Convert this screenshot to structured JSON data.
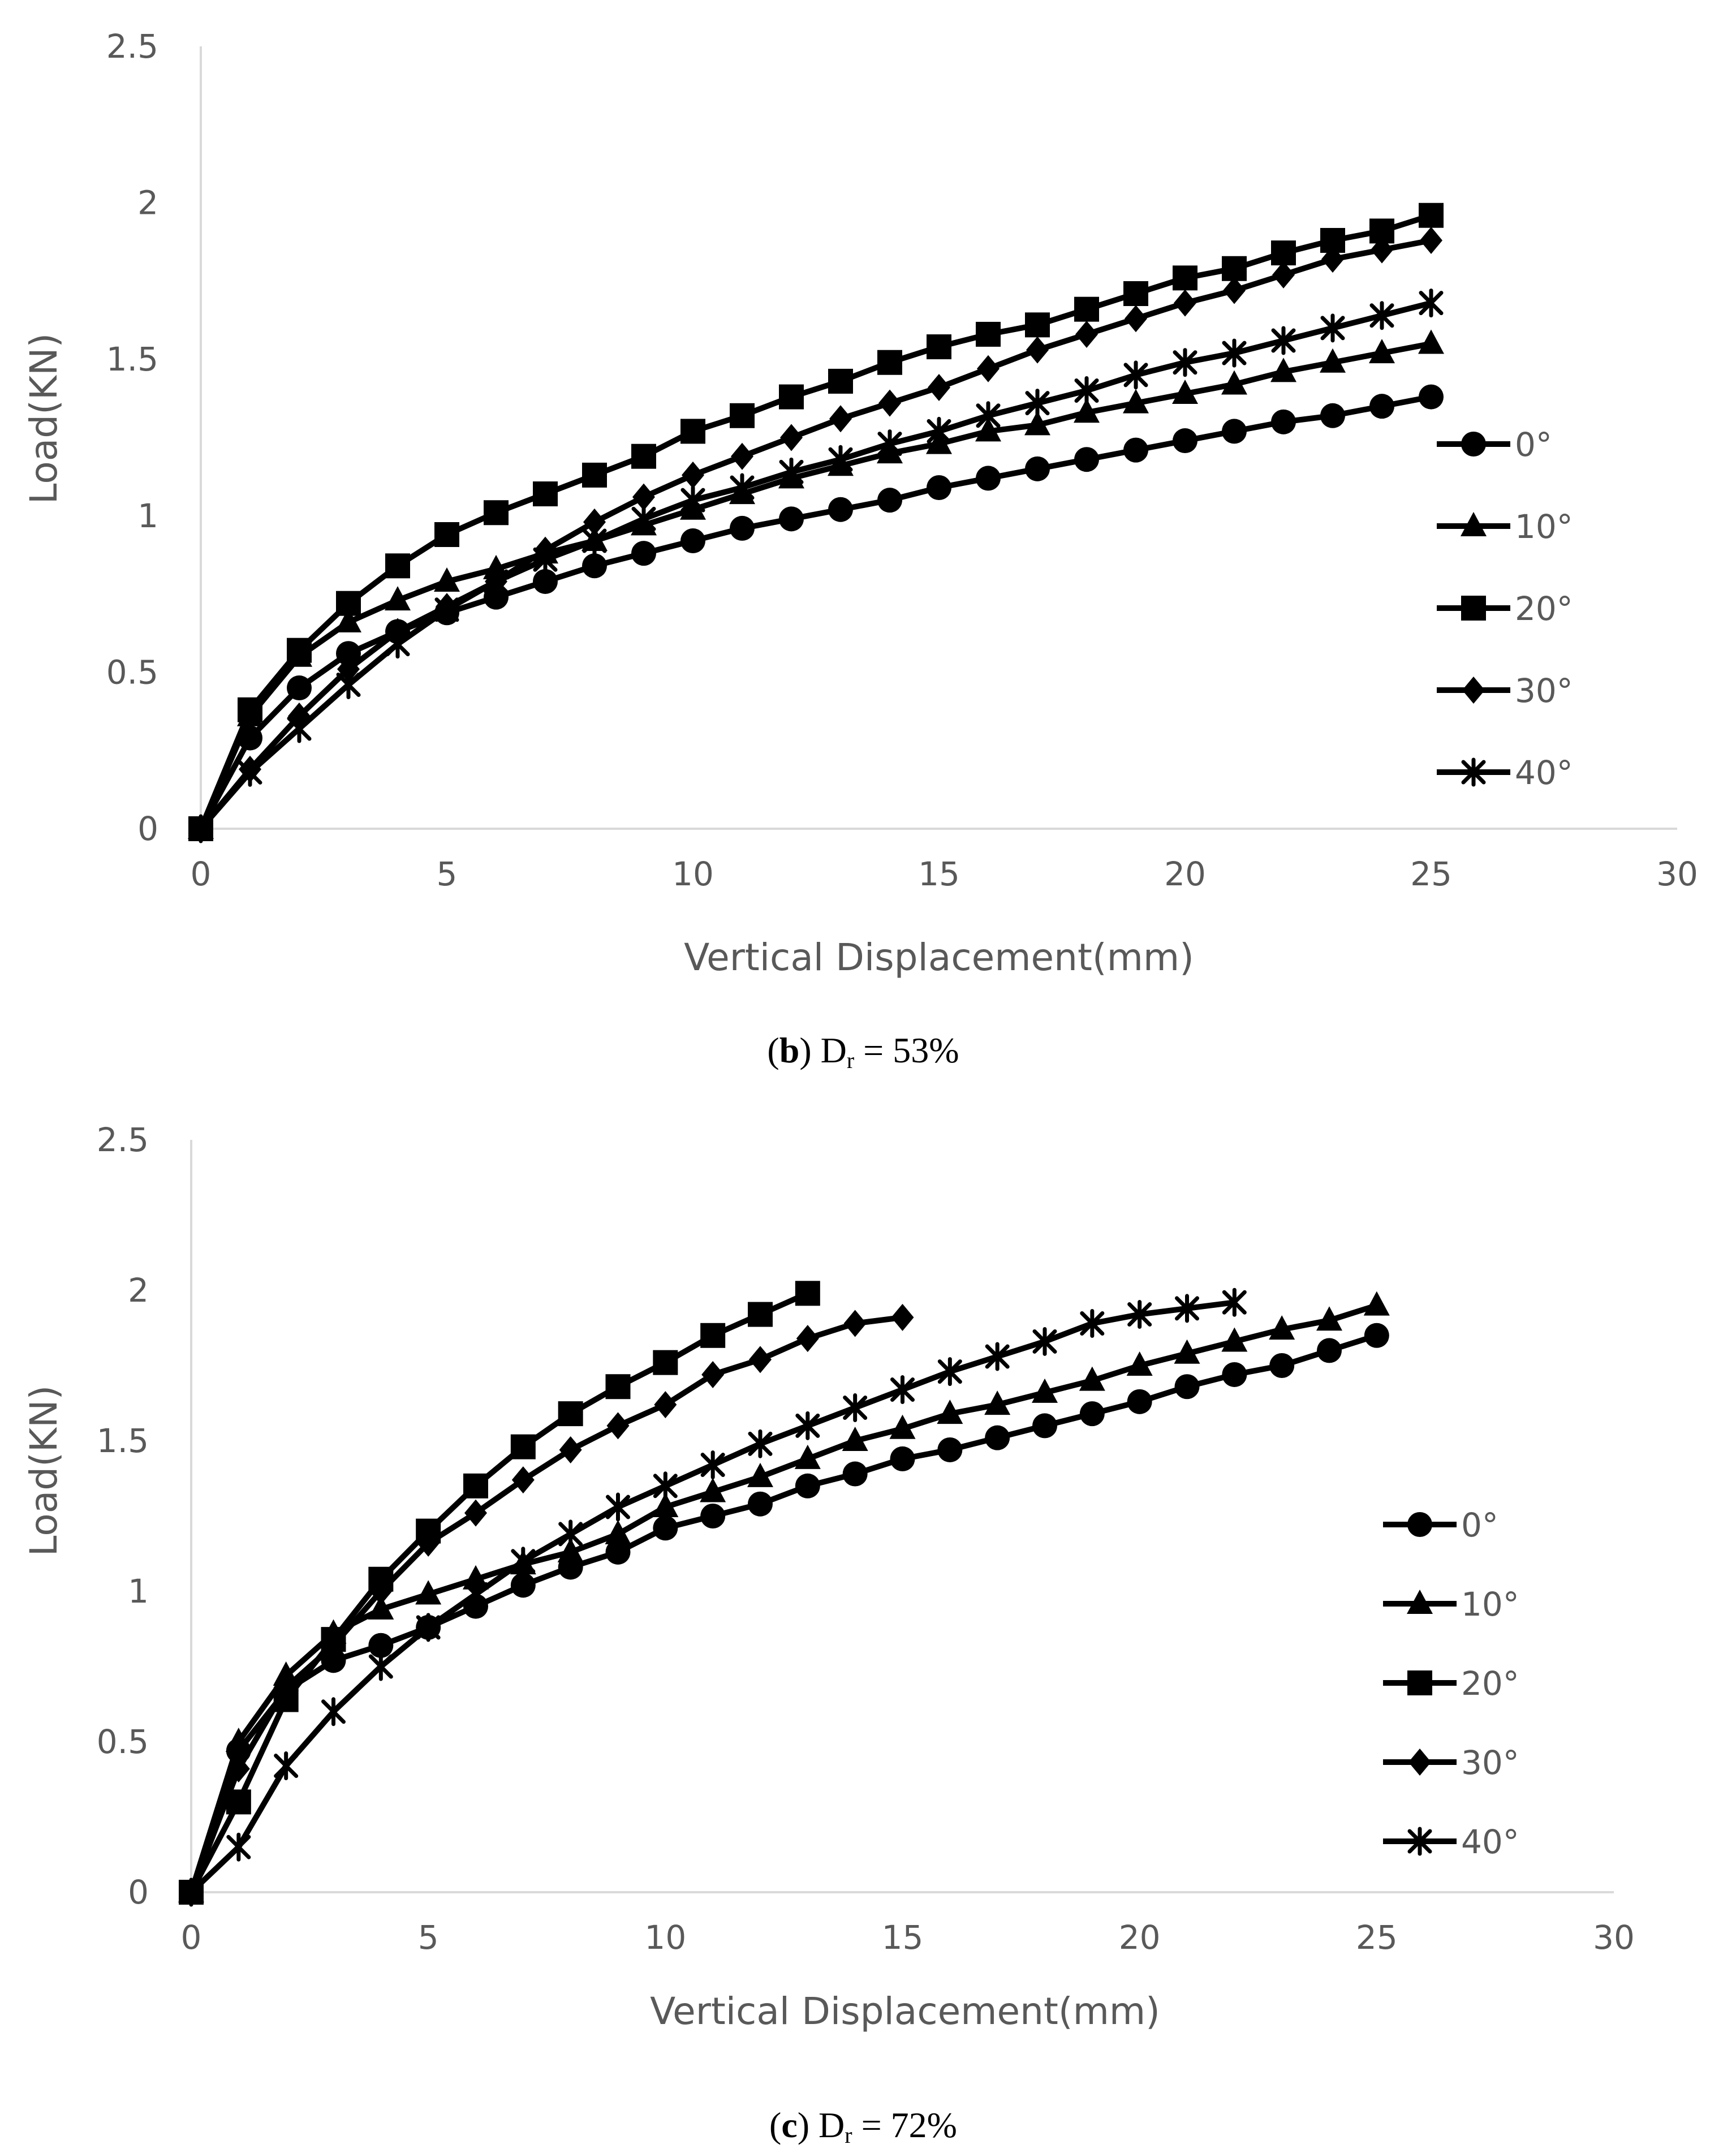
{
  "chart_data": [
    {
      "type": "line",
      "panel": "b",
      "caption": {
        "label": "b",
        "text_prefix": "D",
        "subscript": "r",
        "text_suffix": " = 53%"
      },
      "xlabel": "Vertical Displacement(mm)",
      "ylabel": "Load(KN)",
      "xlim": [
        0,
        30
      ],
      "ylim": [
        0,
        2.5
      ],
      "xticks": [
        "0",
        "5",
        "10",
        "15",
        "20",
        "25",
        "30"
      ],
      "yticks": [
        "0",
        "0.5",
        "1",
        "1.5",
        "2",
        "2.5"
      ],
      "grid": false,
      "legend": "right",
      "series": [
        {
          "name": "0°",
          "marker": "circle",
          "x": [
            0,
            1,
            2,
            3,
            4,
            5,
            6,
            7,
            8,
            9,
            10,
            11,
            12,
            13,
            14,
            15,
            16,
            17,
            18,
            19,
            20,
            21,
            22,
            23,
            24,
            25
          ],
          "values": [
            0,
            0.29,
            0.45,
            0.56,
            0.63,
            0.69,
            0.74,
            0.79,
            0.84,
            0.88,
            0.92,
            0.96,
            0.99,
            1.02,
            1.05,
            1.09,
            1.12,
            1.15,
            1.18,
            1.21,
            1.24,
            1.27,
            1.3,
            1.32,
            1.35,
            1.38
          ]
        },
        {
          "name": "10°",
          "marker": "triangle",
          "x": [
            0,
            1,
            2,
            3,
            4,
            5,
            6,
            7,
            8,
            9,
            10,
            11,
            12,
            13,
            14,
            15,
            16,
            17,
            18,
            19,
            20,
            21,
            22,
            23,
            24,
            25
          ],
          "values": [
            0,
            0.36,
            0.55,
            0.66,
            0.73,
            0.79,
            0.83,
            0.88,
            0.92,
            0.97,
            1.02,
            1.07,
            1.12,
            1.16,
            1.2,
            1.23,
            1.27,
            1.29,
            1.33,
            1.36,
            1.39,
            1.42,
            1.46,
            1.49,
            1.52,
            1.55
          ]
        },
        {
          "name": "20°",
          "marker": "square",
          "x": [
            0,
            1,
            2,
            3,
            4,
            5,
            6,
            7,
            8,
            9,
            10,
            11,
            12,
            13,
            14,
            15,
            16,
            17,
            18,
            19,
            20,
            21,
            22,
            23,
            24,
            25
          ],
          "values": [
            0,
            0.38,
            0.57,
            0.72,
            0.84,
            0.94,
            1.01,
            1.07,
            1.13,
            1.19,
            1.27,
            1.32,
            1.38,
            1.43,
            1.49,
            1.54,
            1.58,
            1.61,
            1.66,
            1.71,
            1.76,
            1.79,
            1.84,
            1.88,
            1.91,
            1.96
          ]
        },
        {
          "name": "30°",
          "marker": "diamond",
          "x": [
            0,
            1,
            2,
            3,
            4,
            5,
            6,
            7,
            8,
            9,
            10,
            11,
            12,
            13,
            14,
            15,
            16,
            17,
            18,
            19,
            20,
            21,
            22,
            23,
            24,
            25
          ],
          "values": [
            0,
            0.19,
            0.36,
            0.51,
            0.63,
            0.71,
            0.79,
            0.89,
            0.98,
            1.06,
            1.13,
            1.19,
            1.25,
            1.31,
            1.36,
            1.41,
            1.47,
            1.53,
            1.58,
            1.63,
            1.68,
            1.72,
            1.77,
            1.82,
            1.85,
            1.88
          ]
        },
        {
          "name": "40°",
          "marker": "asterisk",
          "x": [
            0,
            1,
            2,
            3,
            4,
            5,
            6,
            7,
            8,
            9,
            10,
            11,
            12,
            13,
            14,
            15,
            16,
            17,
            18,
            19,
            20,
            21,
            22,
            23,
            24,
            25
          ],
          "values": [
            0,
            0.18,
            0.32,
            0.46,
            0.59,
            0.7,
            0.79,
            0.86,
            0.92,
            0.99,
            1.05,
            1.09,
            1.14,
            1.18,
            1.23,
            1.27,
            1.32,
            1.36,
            1.4,
            1.45,
            1.49,
            1.52,
            1.56,
            1.6,
            1.64,
            1.68
          ]
        }
      ]
    },
    {
      "type": "line",
      "panel": "c",
      "caption": {
        "label": "c",
        "text_prefix": "D",
        "subscript": "r",
        "text_suffix": " = 72%"
      },
      "xlabel": "Vertical Displacement(mm)",
      "ylabel": "Load(KN)",
      "xlim": [
        0,
        30
      ],
      "ylim": [
        0,
        2.5
      ],
      "xticks": [
        "0",
        "5",
        "10",
        "15",
        "20",
        "25",
        "30"
      ],
      "yticks": [
        "0",
        "0.5",
        "1",
        "1.5",
        "2",
        "2.5"
      ],
      "grid": false,
      "legend": "right",
      "series": [
        {
          "name": "0°",
          "marker": "circle",
          "x": [
            0,
            1,
            2,
            3,
            4,
            5,
            6,
            7,
            8,
            9,
            10,
            11,
            12,
            13,
            14,
            15,
            16,
            17,
            18,
            19,
            20,
            21,
            22,
            23,
            24,
            25
          ],
          "values": [
            0,
            0.47,
            0.67,
            0.77,
            0.82,
            0.88,
            0.95,
            1.02,
            1.08,
            1.13,
            1.21,
            1.25,
            1.29,
            1.35,
            1.39,
            1.44,
            1.47,
            1.51,
            1.55,
            1.59,
            1.63,
            1.68,
            1.72,
            1.75,
            1.8,
            1.85
          ]
        },
        {
          "name": "10°",
          "marker": "triangle",
          "x": [
            0,
            1,
            2,
            3,
            4,
            5,
            6,
            7,
            8,
            9,
            10,
            11,
            12,
            13,
            14,
            15,
            16,
            17,
            18,
            19,
            20,
            21,
            22,
            23,
            24,
            25
          ],
          "values": [
            0,
            0.5,
            0.72,
            0.86,
            0.94,
            0.99,
            1.04,
            1.09,
            1.13,
            1.19,
            1.28,
            1.33,
            1.38,
            1.44,
            1.5,
            1.54,
            1.59,
            1.62,
            1.66,
            1.7,
            1.75,
            1.79,
            1.83,
            1.87,
            1.9,
            1.95
          ]
        },
        {
          "name": "20°",
          "marker": "square",
          "x": [
            0,
            1,
            2,
            3,
            4,
            5,
            6,
            7,
            8,
            9,
            10,
            11,
            12,
            13
          ],
          "values": [
            0,
            0.3,
            0.64,
            0.84,
            1.04,
            1.2,
            1.35,
            1.48,
            1.59,
            1.68,
            1.76,
            1.85,
            1.92,
            1.99
          ]
        },
        {
          "name": "30°",
          "marker": "diamond",
          "x": [
            0,
            1,
            2,
            3,
            4,
            5,
            6,
            7,
            8,
            9,
            10,
            11,
            12,
            13,
            14,
            15
          ],
          "values": [
            0,
            0.41,
            0.68,
            0.82,
            1.0,
            1.16,
            1.26,
            1.37,
            1.47,
            1.55,
            1.62,
            1.72,
            1.77,
            1.84,
            1.89,
            1.91
          ]
        },
        {
          "name": "40°",
          "marker": "asterisk",
          "x": [
            0,
            1,
            2,
            3,
            4,
            5,
            6,
            7,
            8,
            9,
            10,
            11,
            12,
            13,
            14,
            15,
            16,
            17,
            18,
            19,
            20,
            21,
            22
          ],
          "values": [
            0,
            0.15,
            0.42,
            0.6,
            0.75,
            0.88,
            0.99,
            1.1,
            1.19,
            1.28,
            1.35,
            1.42,
            1.49,
            1.55,
            1.61,
            1.67,
            1.73,
            1.78,
            1.83,
            1.89,
            1.92,
            1.94,
            1.96
          ]
        }
      ]
    }
  ]
}
